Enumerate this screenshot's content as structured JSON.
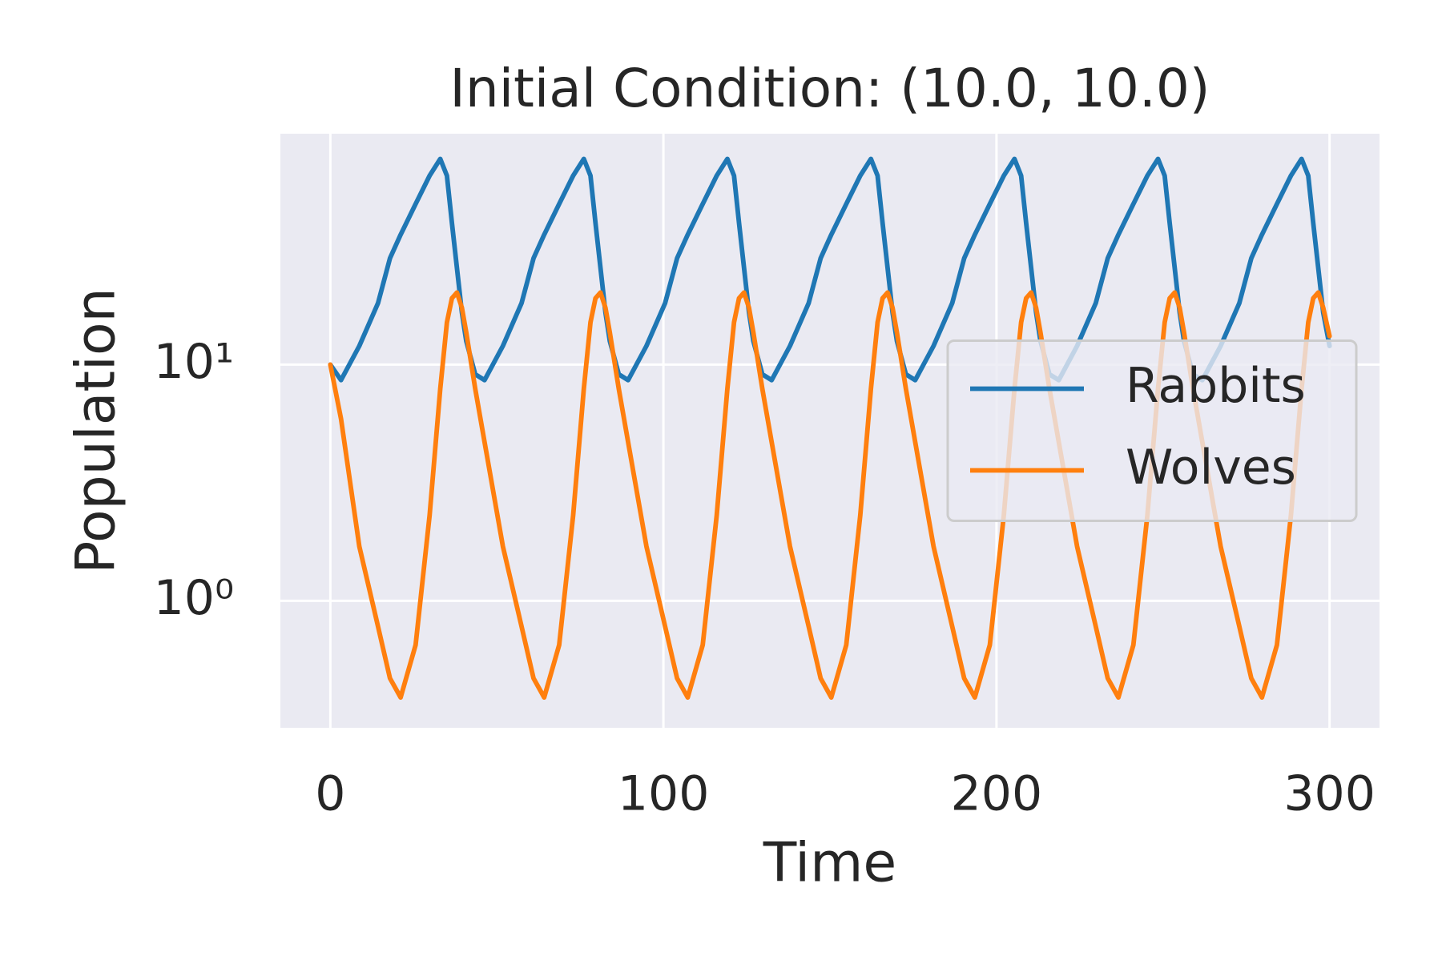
{
  "chart_data": {
    "type": "line",
    "title": "Initial Condition: (10.0, 10.0)",
    "x_label": "Time",
    "y_label": "Population",
    "x": [
      0,
      3.2,
      8.7,
      14.3,
      17.9,
      21.1,
      25.6,
      29.8,
      33,
      35,
      36.5,
      38,
      39.5,
      40.8,
      43.5,
      46.3,
      51.8,
      57.4,
      61,
      64.2,
      68.7,
      72.9,
      76.1,
      78.1,
      79.6,
      81.1,
      82.6,
      83.9,
      86.6,
      89.4,
      94.9,
      100.5,
      104.1,
      107.3,
      111.8,
      116,
      119.2,
      121.2,
      122.7,
      124.2,
      125.7,
      127,
      129.7,
      132.5,
      138,
      143.6,
      147.2,
      150.4,
      154.9,
      159.1,
      162.3,
      164.3,
      165.8,
      167.3,
      168.8,
      170.1,
      172.8,
      175.6,
      181.1,
      186.7,
      190.3,
      193.5,
      198,
      202.2,
      205.4,
      207.4,
      208.9,
      210.4,
      211.9,
      213.2,
      215.9,
      218.7,
      224.2,
      229.8,
      233.4,
      236.6,
      241.1,
      245.3,
      248.5,
      250.5,
      252,
      253.5,
      255,
      256.3,
      259,
      261.8,
      267.3,
      272.9,
      276.5,
      279.7,
      284.2,
      288.4,
      291.6,
      293.6,
      295.1,
      296.6,
      298.1,
      300
    ],
    "series": [
      {
        "name": "Rabbits",
        "color": "#1f77b4",
        "values": [
          10,
          8.6,
          12,
          18.2,
          28.2,
          35.5,
          47.9,
          63.1,
          74.3,
          63.1,
          39.8,
          25.7,
          16.6,
          12.6,
          9.1,
          8.6,
          12,
          18.2,
          28.2,
          35.5,
          47.9,
          63.1,
          74.3,
          63.1,
          39.8,
          25.7,
          16.6,
          12.6,
          9.1,
          8.6,
          12,
          18.2,
          28.2,
          35.5,
          47.9,
          63.1,
          74.3,
          63.1,
          39.8,
          25.7,
          16.6,
          12.6,
          9.1,
          8.6,
          12,
          18.2,
          28.2,
          35.5,
          47.9,
          63.1,
          74.3,
          63.1,
          39.8,
          25.7,
          16.6,
          12.6,
          9.1,
          8.6,
          12,
          18.2,
          28.2,
          35.5,
          47.9,
          63.1,
          74.3,
          63.1,
          39.8,
          25.7,
          16.6,
          12.6,
          9.1,
          8.6,
          12,
          18.2,
          28.2,
          35.5,
          47.9,
          63.1,
          74.3,
          63.1,
          39.8,
          25.7,
          16.6,
          12.6,
          9.1,
          8.6,
          12,
          18.2,
          28.2,
          35.5,
          47.9,
          63.1,
          74.3,
          63.1,
          39.8,
          25.7,
          16.6,
          12
        ]
      },
      {
        "name": "Wolves",
        "color": "#ff7f0e",
        "values": [
          10,
          5.9,
          1.7,
          0.78,
          0.47,
          0.39,
          0.65,
          2.3,
          7.9,
          15.1,
          19.1,
          20.2,
          17.4,
          13.7,
          7.9,
          4.7,
          1.7,
          0.78,
          0.47,
          0.39,
          0.65,
          2.3,
          7.9,
          15.1,
          19.1,
          20.2,
          17.4,
          13.7,
          7.9,
          4.7,
          1.7,
          0.78,
          0.47,
          0.39,
          0.65,
          2.3,
          7.9,
          15.1,
          19.1,
          20.2,
          17.4,
          13.7,
          7.9,
          4.7,
          1.7,
          0.78,
          0.47,
          0.39,
          0.65,
          2.3,
          7.9,
          15.1,
          19.1,
          20.2,
          17.4,
          13.7,
          7.9,
          4.7,
          1.7,
          0.78,
          0.47,
          0.39,
          0.65,
          2.3,
          7.9,
          15.1,
          19.1,
          20.2,
          17.4,
          13.7,
          7.9,
          4.7,
          1.7,
          0.78,
          0.47,
          0.39,
          0.65,
          2.3,
          7.9,
          15.1,
          19.1,
          20.2,
          17.4,
          13.7,
          7.9,
          4.7,
          1.7,
          0.78,
          0.47,
          0.39,
          0.65,
          2.3,
          7.9,
          15.1,
          19.1,
          20.2,
          17.4,
          13.2
        ]
      }
    ],
    "xlim": [
      -15,
      315
    ],
    "xticks": [
      0,
      100,
      200,
      300
    ],
    "ylim": [
      0.29,
      95
    ],
    "y_scale": "log",
    "yticks": [
      {
        "value": 1,
        "label": "10⁰"
      },
      {
        "value": 10,
        "label": "10¹"
      }
    ],
    "grid": true,
    "legend": "center right"
  }
}
